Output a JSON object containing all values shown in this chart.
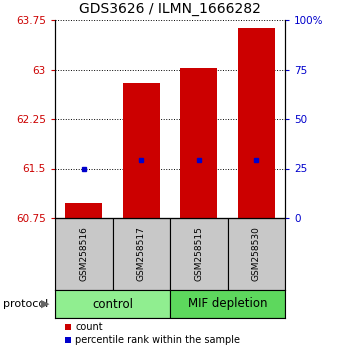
{
  "title": "GDS3626 / ILMN_1666282",
  "samples": [
    "GSM258516",
    "GSM258517",
    "GSM258515",
    "GSM258530"
  ],
  "group_labels": [
    "control",
    "MIF depletion"
  ],
  "group_colors": [
    "#90EE90",
    "#5DD85D"
  ],
  "ylim_left": [
    60.75,
    63.75
  ],
  "ylim_right": [
    0,
    100
  ],
  "yticks_left": [
    60.75,
    61.5,
    62.25,
    63.0,
    63.75
  ],
  "ytick_labels_left": [
    "60.75",
    "61.5",
    "62.25",
    "63",
    "63.75"
  ],
  "yticks_right": [
    0,
    25,
    50,
    75,
    100
  ],
  "ytick_labels_right": [
    "0",
    "25",
    "50",
    "75",
    "100%"
  ],
  "bar_bottoms": [
    60.75,
    60.75,
    60.75,
    60.75
  ],
  "bar_tops": [
    60.97,
    62.8,
    63.03,
    63.63
  ],
  "bar_color": "#CC0000",
  "bar_width": 0.65,
  "percentile_values": [
    61.5,
    61.63,
    61.63,
    61.63
  ],
  "percentile_color": "#0000CC",
  "legend_count_color": "#CC0000",
  "legend_percentile_color": "#0000CC",
  "protocol_label": "protocol"
}
